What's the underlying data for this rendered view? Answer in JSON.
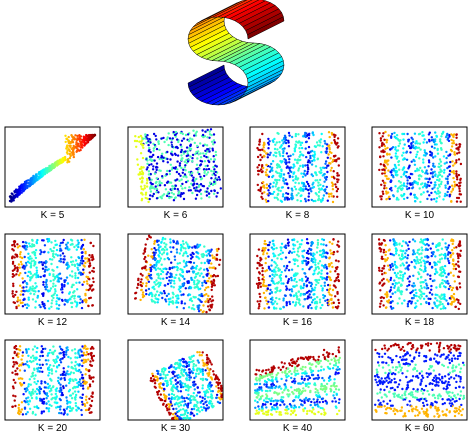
{
  "figure": {
    "surface": "s-curve"
  },
  "chart_data": [
    {
      "type": "scatter",
      "label": "K = 5",
      "pattern": "collapsed"
    },
    {
      "type": "scatter",
      "label": "K = 6",
      "pattern": "tilted-mixed"
    },
    {
      "type": "scatter",
      "label": "K = 8",
      "pattern": "stripes-rect"
    },
    {
      "type": "scatter",
      "label": "K = 10",
      "pattern": "stripes-rect"
    },
    {
      "type": "scatter",
      "label": "K = 12",
      "pattern": "stripes-rect"
    },
    {
      "type": "scatter",
      "label": "K = 14",
      "pattern": "stripes-rotated"
    },
    {
      "type": "scatter",
      "label": "K = 16",
      "pattern": "stripes-rect"
    },
    {
      "type": "scatter",
      "label": "K = 18",
      "pattern": "stripes-rect"
    },
    {
      "type": "scatter",
      "label": "K = 20",
      "pattern": "stripes-rect"
    },
    {
      "type": "scatter",
      "label": "K = 30",
      "pattern": "stripes-diamond"
    },
    {
      "type": "scatter",
      "label": "K = 40",
      "pattern": "bands-wedge"
    },
    {
      "type": "scatter",
      "label": "K = 60",
      "pattern": "horizontal-bands"
    }
  ]
}
